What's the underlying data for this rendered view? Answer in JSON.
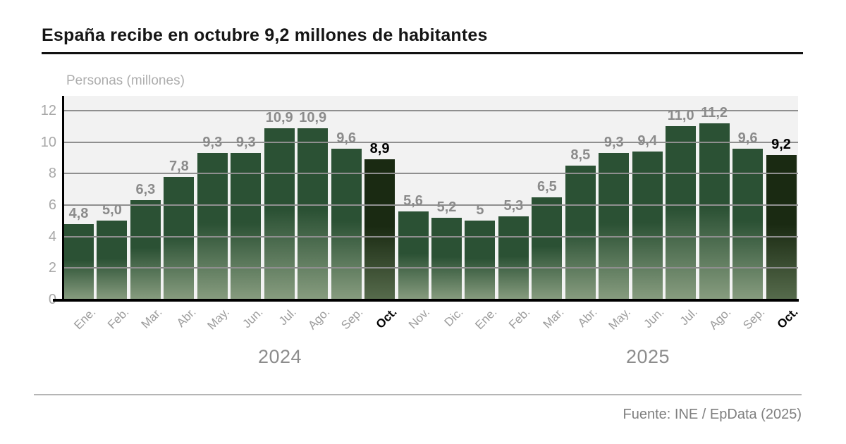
{
  "header": {
    "title": "España recibe en octubre 9,2 millones de habitantes"
  },
  "footer": {
    "source": "Fuente: INE / EpData (2025)"
  },
  "chart_data": {
    "type": "bar",
    "title": "España recibe en octubre 9,2 millones de habitantes",
    "xlabel": "",
    "ylabel": "Personas (millones)",
    "ylim": [
      0,
      12
    ],
    "yticks": [
      0,
      2,
      4,
      6,
      8,
      10,
      12
    ],
    "grid": true,
    "legend": "none",
    "categories": [
      "Ene.",
      "Feb.",
      "Mar.",
      "Abr.",
      "May.",
      "Jun.",
      "Jul.",
      "Ago.",
      "Sep.",
      "Oct.",
      "Nov.",
      "Dic.",
      "Ene.",
      "Feb.",
      "Mar.",
      "Abr.",
      "May.",
      "Jun.",
      "Jul.",
      "Ago.",
      "Sep.",
      "Oct."
    ],
    "values": [
      4.8,
      5.0,
      6.3,
      7.8,
      9.3,
      9.3,
      10.9,
      10.9,
      9.6,
      8.9,
      5.6,
      5.2,
      5,
      5.3,
      6.5,
      8.5,
      9.3,
      9.4,
      11.0,
      11.2,
      9.6,
      9.2
    ],
    "value_labels": [
      "4,8",
      "5,0",
      "6,3",
      "7,8",
      "9,3",
      "9,3",
      "10,9",
      "10,9",
      "9,6",
      "8,9",
      "5,6",
      "5,2",
      "5",
      "5,3",
      "6,5",
      "8,5",
      "9,3",
      "9,4",
      "11,0",
      "11,2",
      "9,6",
      "9,2"
    ],
    "highlighted_indices": [
      9,
      21
    ],
    "year_groups": [
      {
        "label": "2024",
        "center_x": 397
      },
      {
        "label": "2025",
        "center_x": 919
      }
    ],
    "colors": {
      "bar_top": "#2b5134",
      "bar_bottom": "#879c7f",
      "highlight_bar_top": "#1a2a12",
      "highlight_bar_bottom": "#566b4c",
      "gridline": "#8f8f8f",
      "plot_background": "#f2f2f2",
      "axis_line": "#000000",
      "tick_text": "#a8a8a8",
      "value_label": "#8b8b8b",
      "value_label_highlight": "#000000",
      "month_text": "#9c9c9c",
      "month_text_highlight": "#000000",
      "year_text": "#8c8c8c"
    }
  }
}
